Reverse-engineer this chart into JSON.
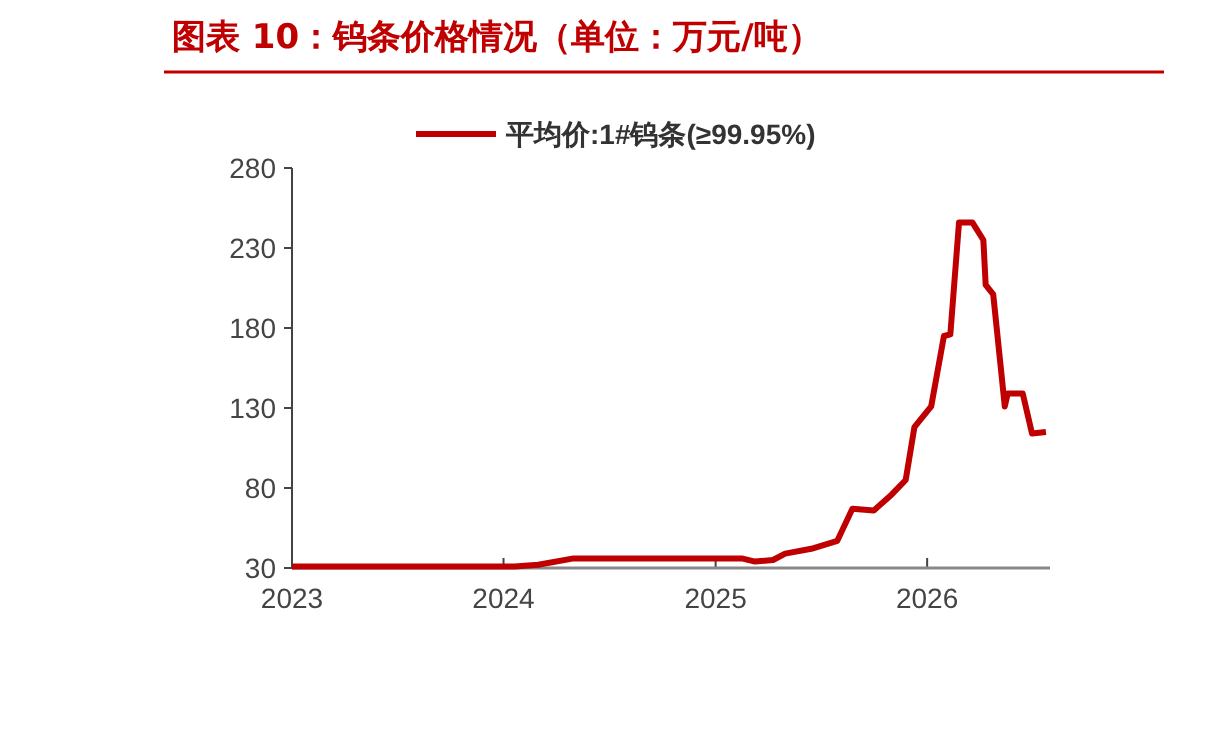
{
  "chart_data": {
    "type": "line",
    "title": "图表 10：钨条价格情况（单位：万元/吨）",
    "legend": "top",
    "x": [
      "2023-01-01",
      "2024-01-20",
      "2024-03-01",
      "2024-05-01",
      "2025-02-15",
      "2025-03-10",
      "2025-04-10",
      "2025-05-01",
      "2025-06-15",
      "2025-07-30",
      "2025-08-25",
      "2025-10-01",
      "2025-11-01",
      "2025-11-25",
      "2025-12-10",
      "2026-01-08",
      "2026-01-30",
      "2026-02-10",
      "2026-02-25",
      "2026-03-20",
      "2026-04-08",
      "2026-04-12",
      "2026-04-25",
      "2026-05-15",
      "2026-05-20",
      "2026-06-15",
      "2026-07-01",
      "2026-07-25"
    ],
    "series": [
      {
        "name": "平均价:1#钨条(≥99.95%)",
        "color": "#c00000",
        "values": [
          31,
          31,
          32,
          36,
          36,
          34,
          35,
          39,
          42,
          47,
          67,
          66,
          76,
          85,
          118,
          131,
          175,
          176,
          246,
          246,
          235,
          207,
          201,
          131,
          139,
          139,
          114,
          115
        ]
      }
    ],
    "xlim": [
      "2023-01-01",
      "2026-08-01"
    ],
    "xticks": [
      {
        "value": "2023-01-01",
        "label": "2023"
      },
      {
        "value": "2024-01-01",
        "label": "2024"
      },
      {
        "value": "2025-01-01",
        "label": "2025"
      },
      {
        "value": "2026-01-01",
        "label": "2026"
      }
    ],
    "ylim": [
      30,
      280
    ],
    "yticks": [
      30,
      80,
      130,
      180,
      230,
      280
    ],
    "marker": "none",
    "line_style": "solid"
  }
}
